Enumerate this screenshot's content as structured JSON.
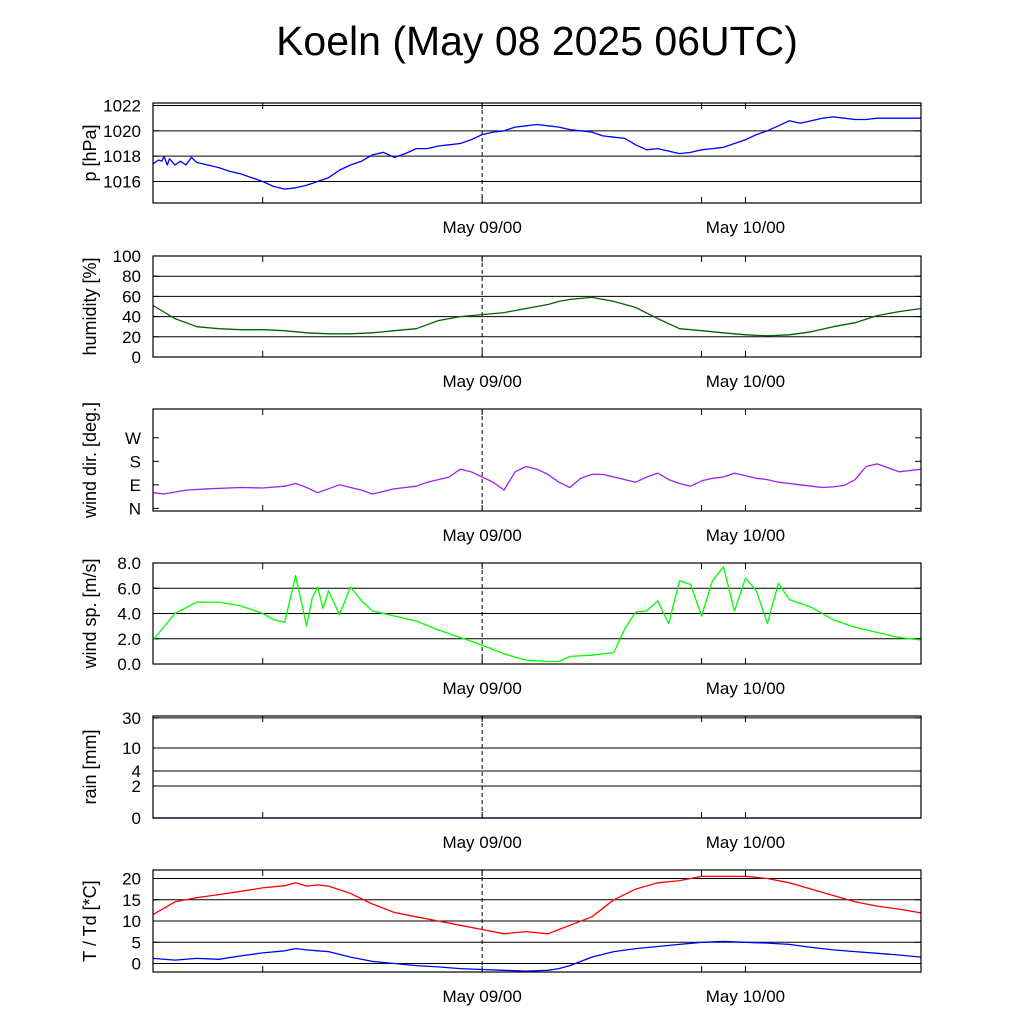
{
  "title": "Koeln (May 08 2025 06UTC)",
  "x_tick_labels": [
    "May 09/00",
    "May 10/00"
  ],
  "chart_data": [
    {
      "id": "pressure",
      "type": "line",
      "ylabel": "p [hPa]",
      "ylim": [
        1014.3,
        1022.2
      ],
      "yticks": [
        1016,
        1018,
        1020,
        1022
      ],
      "ytick_labels": [
        "1016",
        "1018",
        "1020",
        "1022"
      ],
      "grid_lines": [
        1016,
        1018,
        1020,
        1022
      ],
      "series": [
        {
          "color": "#0000ff",
          "x": [
            0,
            0.5,
            0.8,
            1,
            1.3,
            1.5,
            2,
            2.5,
            3,
            3.5,
            4,
            5,
            6,
            7,
            8,
            9,
            10,
            11,
            12,
            13,
            14,
            15,
            16,
            17,
            18,
            19,
            20,
            21,
            22,
            23,
            24,
            25,
            26,
            27,
            28,
            29,
            30,
            31,
            32,
            33,
            34,
            35,
            36,
            37,
            38,
            39,
            40,
            41,
            42,
            43,
            44,
            45,
            46,
            47,
            48,
            49,
            50,
            51,
            52,
            53,
            54,
            55,
            56,
            57,
            58,
            59,
            60,
            61,
            62,
            63,
            64,
            65,
            66,
            67,
            68,
            69,
            70
          ],
          "y": [
            1017.4,
            1017.7,
            1017.6,
            1018.0,
            1017.3,
            1017.8,
            1017.3,
            1017.6,
            1017.3,
            1017.9,
            1017.5,
            1017.3,
            1017.1,
            1016.8,
            1016.6,
            1016.3,
            1016.0,
            1015.6,
            1015.4,
            1015.5,
            1015.7,
            1016.0,
            1016.3,
            1016.9,
            1017.3,
            1017.6,
            1018.1,
            1018.3,
            1017.9,
            1018.2,
            1018.6,
            1018.6,
            1018.8,
            1018.9,
            1019.0,
            1019.3,
            1019.7,
            1019.9,
            1020.0,
            1020.3,
            1020.4,
            1020.5,
            1020.4,
            1020.3,
            1020.1,
            1020.0,
            1019.9,
            1019.6,
            1019.5,
            1019.4,
            1018.9,
            1018.5,
            1018.6,
            1018.4,
            1018.2,
            1018.3,
            1018.5,
            1018.6,
            1018.7,
            1019.0,
            1019.3,
            1019.7,
            1020.0,
            1020.4,
            1020.8,
            1020.6,
            1020.8,
            1021.0,
            1021.1,
            1021.0,
            1020.9,
            1020.9,
            1021.0,
            1021.0,
            1021.0,
            1021.0,
            1021.0
          ]
        }
      ]
    },
    {
      "id": "humidity",
      "type": "line",
      "ylabel": "humidity [%]",
      "ylim": [
        0,
        100
      ],
      "yticks": [
        0,
        20,
        40,
        60,
        80,
        100
      ],
      "ytick_labels": [
        "0",
        "20",
        "40",
        "60",
        "80",
        "100"
      ],
      "grid_lines": [
        20,
        40,
        60,
        80,
        100
      ],
      "series": [
        {
          "color": "#006400",
          "x": [
            0,
            2,
            4,
            6,
            8,
            10,
            12,
            14,
            16,
            18,
            20,
            22,
            24,
            26,
            28,
            30,
            32,
            34,
            36,
            37,
            38,
            40,
            42,
            44,
            46,
            48,
            50,
            52,
            54,
            56,
            58,
            60,
            62,
            64,
            66,
            68,
            70
          ],
          "y": [
            51,
            38,
            30,
            28,
            27,
            27,
            26,
            24,
            23,
            23,
            24,
            26,
            28,
            36,
            40,
            42,
            44,
            48,
            52,
            55,
            57,
            59,
            55,
            49,
            38,
            28,
            26,
            24,
            22,
            21,
            22,
            25,
            30,
            34,
            41,
            45,
            48
          ]
        }
      ]
    },
    {
      "id": "wind_direction",
      "type": "line",
      "ylabel": "wind dir. [deg.]",
      "ylim": [
        -10,
        380
      ],
      "yticks": [
        0,
        90,
        180,
        270
      ],
      "ytick_labels": [
        "N",
        "E",
        "S",
        "W"
      ],
      "grid_lines": [],
      "series": [
        {
          "color": "#a020f0",
          "x": [
            0,
            1,
            3,
            5,
            8,
            10,
            12,
            13,
            14,
            15,
            16,
            17,
            18,
            19,
            20,
            21,
            22,
            23,
            24,
            25,
            26,
            27,
            28,
            29,
            30,
            31,
            32,
            33,
            34,
            35,
            36,
            37,
            38,
            39,
            40,
            41,
            42,
            43,
            44,
            45,
            46,
            47,
            48,
            49,
            50,
            51,
            52,
            53,
            54,
            55,
            56,
            57,
            58,
            59,
            60,
            61,
            62,
            63,
            64,
            65,
            66,
            67,
            68,
            69,
            70
          ],
          "y": [
            60,
            55,
            70,
            75,
            80,
            78,
            85,
            95,
            80,
            60,
            75,
            90,
            80,
            70,
            55,
            65,
            75,
            80,
            85,
            100,
            110,
            120,
            150,
            140,
            120,
            100,
            70,
            140,
            160,
            150,
            130,
            100,
            80,
            115,
            130,
            130,
            120,
            110,
            100,
            120,
            135,
            110,
            95,
            85,
            105,
            115,
            120,
            135,
            125,
            115,
            110,
            100,
            95,
            90,
            85,
            80,
            82,
            88,
            110,
            160,
            170,
            155,
            140,
            145,
            150
          ]
        }
      ]
    },
    {
      "id": "wind_speed",
      "type": "line",
      "ylabel": "wind sp. [m/s]",
      "ylim": [
        0,
        8
      ],
      "yticks": [
        0,
        2,
        4,
        6,
        8
      ],
      "ytick_labels": [
        "0.0",
        "2.0",
        "4.0",
        "6.0",
        "8.0"
      ],
      "grid_lines": [
        2,
        4,
        6,
        8
      ],
      "series": [
        {
          "color": "#00ff00",
          "x": [
            0,
            2,
            4,
            6,
            8,
            10,
            11,
            12,
            13,
            14,
            14.5,
            15,
            15.5,
            16,
            17,
            18,
            19,
            20,
            22,
            24,
            26,
            28,
            30,
            32,
            34,
            36,
            37,
            38,
            40,
            42,
            43,
            44,
            45,
            46,
            47,
            48,
            49,
            50,
            51,
            52,
            53,
            54,
            55,
            56,
            57,
            58,
            60,
            62,
            64,
            66,
            68,
            70
          ],
          "y": [
            1.9,
            4.0,
            4.9,
            4.9,
            4.6,
            4.0,
            3.5,
            3.3,
            7.0,
            3.0,
            5.2,
            6.1,
            4.4,
            5.8,
            3.9,
            6.1,
            5.0,
            4.2,
            3.8,
            3.4,
            2.7,
            2.1,
            1.5,
            0.8,
            0.3,
            0.2,
            0.2,
            0.6,
            0.7,
            0.9,
            2.8,
            4.1,
            4.2,
            5.0,
            3.2,
            6.6,
            6.3,
            3.8,
            6.6,
            7.7,
            4.2,
            6.8,
            5.8,
            3.2,
            6.4,
            5.1,
            4.5,
            3.5,
            2.9,
            2.5,
            2.1,
            1.9
          ]
        }
      ]
    },
    {
      "id": "rain",
      "type": "line",
      "ylabel": "rain [mm]",
      "ylim": [
        0,
        32
      ],
      "yticks": [
        0,
        2,
        4,
        10,
        30
      ],
      "ytick_labels": [
        "0",
        "2",
        "4",
        "10",
        "30"
      ],
      "scale": "log1p",
      "grid_lines": [
        2,
        4,
        10,
        30
      ],
      "series": [
        {
          "color": "#0000ff",
          "x": [
            0,
            70
          ],
          "y": [
            0,
            0
          ]
        }
      ]
    },
    {
      "id": "temperature",
      "type": "line",
      "ylabel": "T / Td [*C]",
      "ylim": [
        -2,
        22
      ],
      "yticks": [
        0,
        5,
        10,
        15,
        20
      ],
      "ytick_labels": [
        "0",
        "5",
        "10",
        "15",
        "20"
      ],
      "grid_lines": [
        0,
        5,
        10,
        15,
        20
      ],
      "series": [
        {
          "name": "T",
          "color": "#ff0000",
          "x": [
            0,
            2,
            4,
            6,
            8,
            10,
            12,
            13,
            14,
            15,
            16,
            18,
            20,
            22,
            24,
            26,
            28,
            30,
            32,
            34,
            36,
            37,
            38,
            40,
            42,
            44,
            46,
            48,
            50,
            52,
            54,
            56,
            58,
            60,
            62,
            64,
            66,
            68,
            70
          ],
          "y": [
            11.5,
            14.5,
            15.5,
            16.2,
            17.0,
            17.8,
            18.3,
            19.0,
            18.2,
            18.5,
            18.2,
            16.5,
            14.0,
            12.0,
            11.0,
            10.0,
            9.0,
            8.0,
            7.0,
            7.5,
            7.0,
            8.0,
            9.0,
            11.0,
            15.0,
            17.5,
            19.0,
            19.5,
            20.5,
            20.5,
            20.5,
            20.0,
            19.0,
            17.5,
            16.0,
            14.5,
            13.5,
            12.8,
            11.9
          ]
        },
        {
          "name": "Td",
          "color": "#0000ff",
          "x": [
            0,
            2,
            4,
            6,
            8,
            10,
            12,
            13,
            14,
            15,
            16,
            18,
            20,
            22,
            24,
            26,
            28,
            30,
            32,
            34,
            36,
            37,
            38,
            40,
            42,
            44,
            46,
            48,
            50,
            52,
            54,
            56,
            58,
            60,
            62,
            64,
            66,
            68,
            70
          ],
          "y": [
            1.2,
            0.8,
            1.2,
            1.0,
            1.8,
            2.5,
            3.0,
            3.5,
            3.2,
            3.0,
            2.8,
            1.5,
            0.5,
            0.0,
            -0.5,
            -0.8,
            -1.2,
            -1.4,
            -1.6,
            -1.8,
            -1.6,
            -1.2,
            -0.5,
            1.5,
            2.8,
            3.5,
            4.0,
            4.5,
            5.0,
            5.2,
            5.0,
            4.8,
            4.5,
            3.8,
            3.2,
            2.8,
            2.4,
            2.0,
            1.5
          ]
        }
      ]
    }
  ]
}
